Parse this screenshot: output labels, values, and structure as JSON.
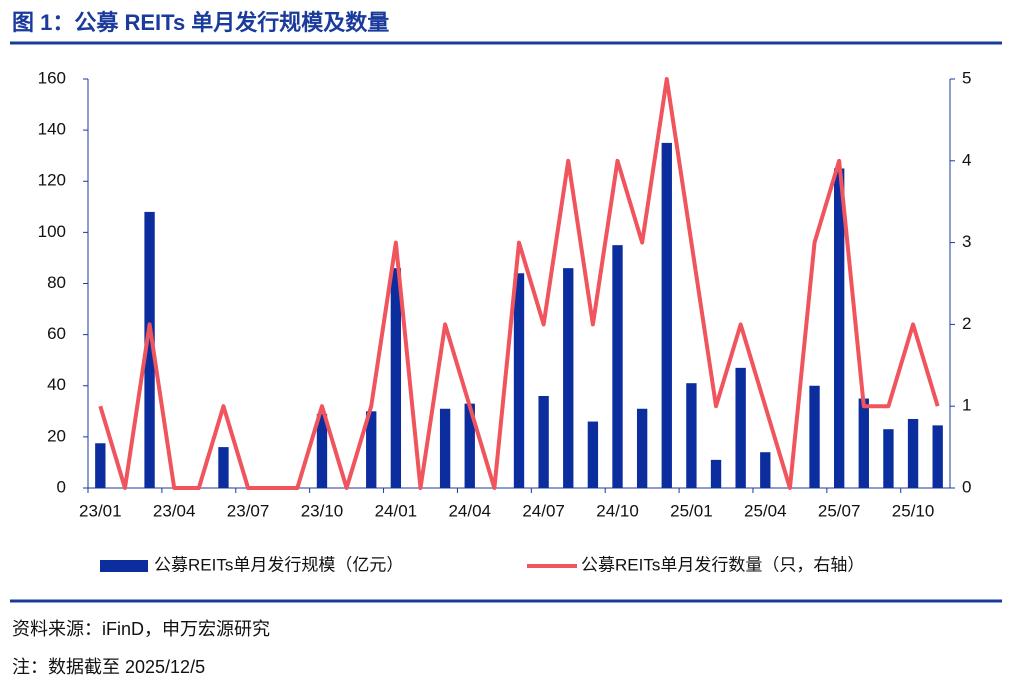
{
  "chart_data": {
    "type": "bar",
    "title": "图 1：公募 REITs 单月发行规模及数量",
    "categories": [
      "23/01",
      null,
      null,
      "23/04",
      null,
      null,
      "23/07",
      null,
      null,
      "23/10",
      null,
      null,
      "24/01",
      null,
      null,
      "24/04",
      null,
      null,
      "24/07",
      null,
      null,
      "24/10",
      null,
      null,
      "25/01",
      null,
      null,
      "25/04",
      null,
      null,
      "25/07",
      null,
      null,
      "25/10",
      null
    ],
    "series": [
      {
        "name": "公募REITs单月发行规模（亿元）",
        "type": "bar",
        "color": "#0c2d9e",
        "axis": "y",
        "values": [
          17.5,
          0,
          108,
          0,
          0,
          16,
          0,
          0,
          0,
          29,
          0,
          30,
          86,
          0,
          31,
          33,
          0,
          84,
          36,
          86,
          26,
          95,
          31,
          135,
          41,
          11,
          47,
          14,
          0,
          40,
          125,
          35,
          23,
          27,
          24.5
        ]
      },
      {
        "name": "公募REITs单月发行数量（只，右轴）",
        "type": "line",
        "color": "#f0545c",
        "axis": "y2",
        "values": [
          1,
          0,
          2,
          0,
          0,
          1,
          0,
          0,
          0,
          1,
          0,
          1,
          3,
          0,
          2,
          1,
          0,
          3,
          2,
          4,
          2,
          4,
          3,
          5,
          3,
          1,
          2,
          1,
          0,
          3,
          4,
          1,
          1,
          2,
          1
        ]
      }
    ],
    "ylim": [
      0,
      160
    ],
    "yticks": [
      0,
      20,
      40,
      60,
      80,
      100,
      120,
      140,
      160
    ],
    "y2lim": [
      0,
      5
    ],
    "y2ticks": [
      0,
      1,
      2,
      3,
      4,
      5
    ],
    "legend": "bottom",
    "source": "资料来源：iFinD，申万宏源研究",
    "note": "注：数据截至 2025/12/5"
  }
}
